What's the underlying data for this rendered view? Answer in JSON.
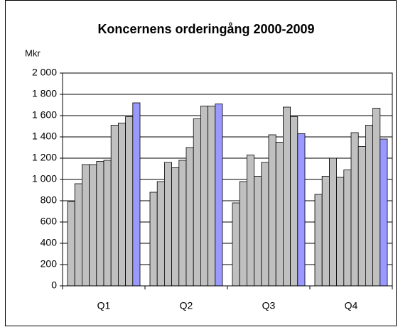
{
  "chart_data": {
    "type": "bar",
    "title": "Koncernens orderingång 2000-2009",
    "y_label": "Mkr",
    "categories": [
      "Q1",
      "Q2",
      "Q3",
      "Q4"
    ],
    "series": [
      {
        "color": "#c0c0c0",
        "values": [
          790,
          880,
          780,
          860
        ]
      },
      {
        "color": "#c0c0c0",
        "values": [
          960,
          980,
          980,
          1030
        ]
      },
      {
        "color": "#c0c0c0",
        "values": [
          1140,
          1160,
          1230,
          1200
        ]
      },
      {
        "color": "#c0c0c0",
        "values": [
          1140,
          1110,
          1030,
          1020
        ]
      },
      {
        "color": "#c0c0c0",
        "values": [
          1170,
          1180,
          1160,
          1090
        ]
      },
      {
        "color": "#c0c0c0",
        "values": [
          1180,
          1300,
          1420,
          1440
        ]
      },
      {
        "color": "#c0c0c0",
        "values": [
          1510,
          1570,
          1350,
          1310
        ]
      },
      {
        "color": "#c0c0c0",
        "values": [
          1530,
          1690,
          1680,
          1510
        ]
      },
      {
        "color": "#c0c0c0",
        "values": [
          1590,
          1690,
          1590,
          1670
        ]
      },
      {
        "color": "#9999ff",
        "values": [
          1720,
          1710,
          1430,
          1380
        ]
      }
    ],
    "ylim": [
      0,
      2000
    ],
    "yticks": [
      0,
      200,
      400,
      600,
      800,
      {
        "value": 1000,
        "label": "1 000"
      },
      {
        "value": 1200,
        "label": "1 200"
      },
      {
        "value": 1400,
        "label": "1 400"
      },
      {
        "value": 1600,
        "label": "1 600"
      },
      {
        "value": 1800,
        "label": "1 800"
      },
      {
        "value": 2000,
        "label": "2 000"
      }
    ],
    "grid": true
  }
}
